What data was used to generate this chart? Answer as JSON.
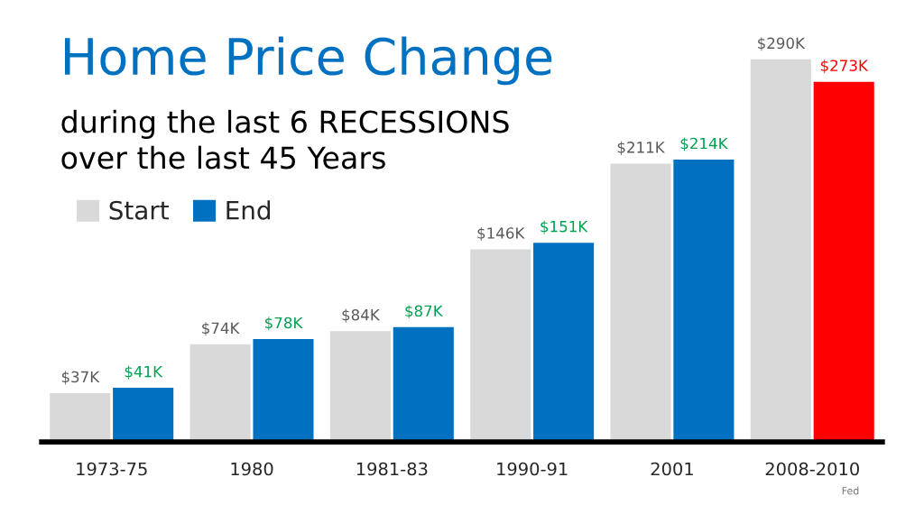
{
  "chart_data": {
    "type": "bar",
    "title": "Home Price Change",
    "subtitle": "during the last 6 RECESSIONS\nover the last 45 Years",
    "categories": [
      "1973-75",
      "1980",
      "1981-83",
      "1990-91",
      "2001",
      "2008-2010"
    ],
    "series": [
      {
        "name": "Start",
        "color": "#d9d9d9",
        "values": [
          37,
          74,
          84,
          146,
          211,
          290
        ],
        "value_labels": [
          "$37K",
          "$74K",
          "$84K",
          "$146K",
          "$211K",
          "$290K"
        ]
      },
      {
        "name": "End",
        "color": "#0070c0",
        "colors": [
          "#0070c0",
          "#0070c0",
          "#0070c0",
          "#0070c0",
          "#0070c0",
          "#ff0000"
        ],
        "values": [
          41,
          78,
          87,
          151,
          214,
          273
        ],
        "value_labels": [
          "$41K",
          "$78K",
          "$87K",
          "$151K",
          "$214K",
          "$273K"
        ]
      }
    ],
    "legend": "top left",
    "grid": false,
    "tick_labels": "x",
    "annotations": [
      "Fed"
    ]
  }
}
